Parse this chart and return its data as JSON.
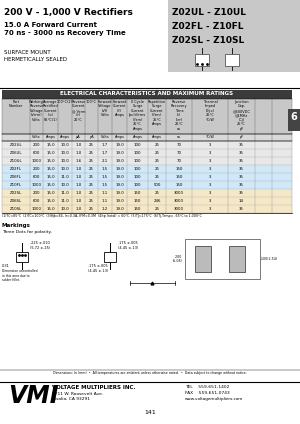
{
  "title_left1": "200 V - 1,000 V Rectifiers",
  "title_left2": "15.0 A Forward Current",
  "title_left3": "70 ns - 3000 ns Recovery Time",
  "title_right1": "Z02UL - Z10UL",
  "title_right2": "Z02FL - Z10FL",
  "title_right3": "Z02SL - Z10SL",
  "subtitle1": "SURFACE MOUNT",
  "subtitle2": "HERMETICALLY SEALED",
  "table_title": "ELECTRICAL CHARACTERISTICS AND MAXIMUM RATINGS",
  "footnote": "(1)TC=85°C  (2)TC=100°C  (3)θjb=84, Ir=0.3A, IFM=0.3M  (4)tp (total) = 60°C  (5)TJ=175°C  (6)Tj-Tamp= -65°C to 1,000°C",
  "markings_title": "Markings",
  "markings_text": "Three Dots for polarity.",
  "dim_label1": ".225 ±.010",
  "dim_label1b": "(5.72 ±.25)",
  "dim_label2": ".031",
  "dim_note_small": "Dimension uncontrolled\nin this area due to\nsolder fillet.",
  "dim_label3": ".175 ±.005",
  "dim_label3b": "(4.45 ±.13)",
  "dim_label4": ".175 ±.005",
  "dim_label4b": "(4.45 ±.13)",
  "dim_label5": ".100x2.54\n(2 PL.)",
  "dim_label6": ".200\n(5.08)",
  "dim_label7": ".100(2.54)",
  "dim_note": "Dimensions: In (mm)  •  All temperatures are ambient unless otherwise noted.  •  Data subject to change without notice.",
  "company": "VOLTAGE MULTIPLIERS INC.",
  "address1": "8711 W. Roosevelt Ave.",
  "address2": "Visalia, CA 93291",
  "tel": "TEL    559-651-1402",
  "fax": "FAX    559-651-0743",
  "web": "www.voltagemultipliers.com",
  "page": "141",
  "row_data": [
    [
      "Z02UL",
      "200",
      "15.0",
      "10.0",
      "1.0",
      "25",
      "1.7",
      "19.0",
      "100",
      "25",
      "70",
      "3",
      "35"
    ],
    [
      "Z06UL",
      "600",
      "15.0",
      "10.0",
      "1.0",
      "25",
      "1.7",
      "19.0",
      "100",
      "25",
      "70",
      "3",
      "35"
    ],
    [
      "Z10UL",
      "1000",
      "15.0",
      "10.0",
      "1.6",
      "25",
      "2.1",
      "19.0",
      "100",
      "25",
      "70",
      "3",
      "35"
    ],
    [
      "Z02FL",
      "200",
      "15.0",
      "10.0",
      "1.0",
      "25",
      "1.5",
      "19.0",
      "100",
      "25",
      "150",
      "3",
      "35"
    ],
    [
      "Z06FL",
      "600",
      "15.0",
      "11.0",
      "1.0",
      "25",
      "1.5",
      "19.0",
      "100",
      "25",
      "150",
      "3",
      "35"
    ],
    [
      "Z10FL",
      "1000",
      "15.0",
      "10.0",
      "1.0",
      "25",
      "1.5",
      "19.0",
      "100",
      "500",
      "150",
      "3",
      "35"
    ],
    [
      "Z02SL",
      "200",
      "15.0",
      "11.0",
      "1.0",
      "25",
      "1.1",
      "19.0",
      "150",
      "25",
      "3000",
      "3",
      "35"
    ],
    [
      "Z06SL",
      "600",
      "15.0",
      "11.0",
      "1.0",
      "25",
      "1.1",
      "19.0",
      "150",
      "246",
      "3000",
      "3",
      "14"
    ],
    [
      "Z10SL",
      "1000",
      "15.0",
      "10.0",
      "1.0",
      "25",
      "1.2",
      "19.0",
      "150",
      "25",
      "3000",
      "3",
      "35"
    ]
  ]
}
